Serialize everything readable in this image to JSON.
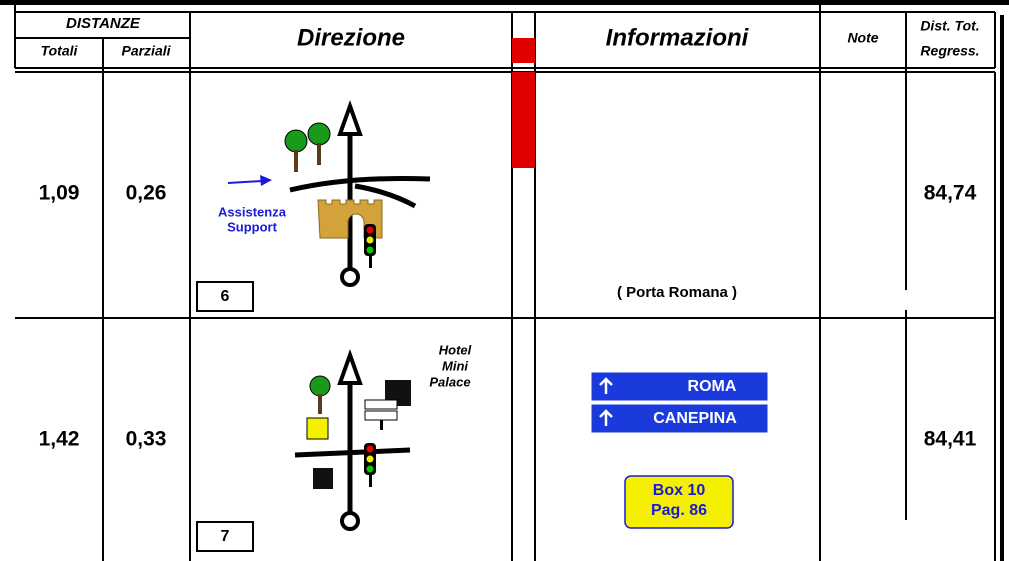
{
  "header": {
    "distanze": "DISTANZE",
    "totali": "Totali",
    "parziali": "Parziali",
    "direzione": "Direzione",
    "informazioni": "Informazioni",
    "note": "Note",
    "regress_1": "Dist. Tot.",
    "regress_2": "Regress."
  },
  "rows": [
    {
      "totali": "1,09",
      "parziali": "0,26",
      "box": "6",
      "labels": [
        "Assistenza",
        "Support"
      ],
      "info": "( Porta Romana )",
      "regress": "84,74"
    },
    {
      "totali": "1,42",
      "parziali": "0,33",
      "box": "7",
      "labels": [
        "Hotel",
        "Mini",
        "Palace"
      ],
      "signs": [
        "ROMA",
        "CANEPINA"
      ],
      "reference": [
        "Box 10",
        "Pag. 86"
      ],
      "regress": "84,41"
    }
  ]
}
